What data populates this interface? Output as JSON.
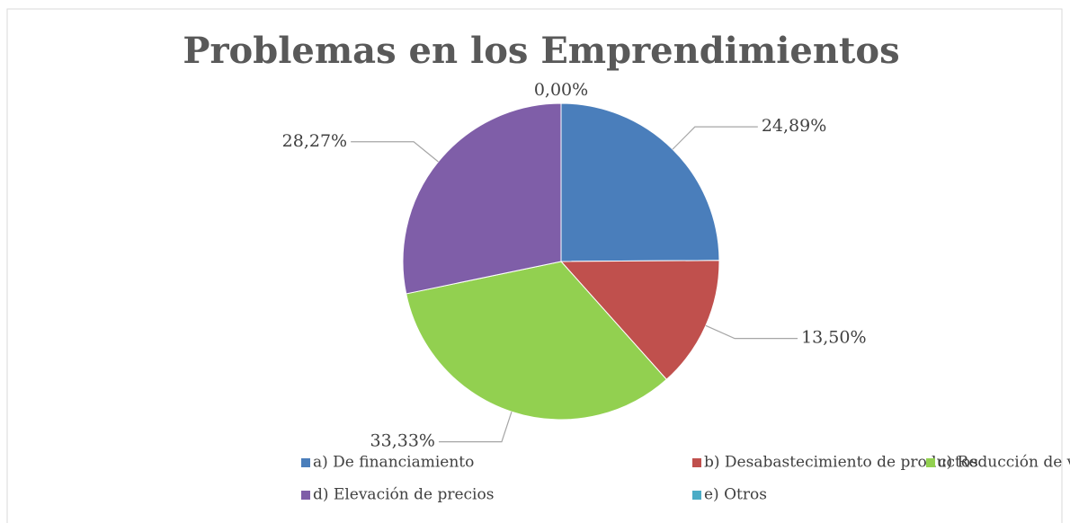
{
  "chart_data": {
    "type": "pie",
    "title": "Problemas en los Emprendimientos",
    "categories": [
      "a) De financiamiento",
      "b) Desabastecimiento de productos",
      "c) Reducción de ventas",
      "d) Elevación de precios",
      "e) Otros"
    ],
    "values": [
      24.89,
      13.5,
      33.33,
      28.27,
      0.0
    ],
    "value_labels": [
      "24,89%",
      "13,50%",
      "33,33%",
      "28,27%",
      "0,00%"
    ],
    "colors": [
      "#4a7ebb",
      "#c0504d",
      "#92d050",
      "#7f5ea8",
      "#4bacc6"
    ],
    "legend": "bottom"
  }
}
